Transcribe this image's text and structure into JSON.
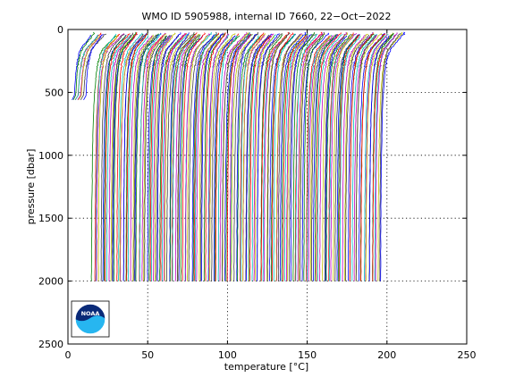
{
  "chart_data": {
    "type": "line",
    "title": "WMO ID 5905988, internal ID 7660, 22−Oct−2022",
    "xlabel": "temperature [°C]",
    "ylabel": "pressure [dbar]",
    "xlim": [
      0,
      250
    ],
    "ylim": [
      0,
      2500
    ],
    "y_reversed": true,
    "x_ticks": [
      0,
      50,
      100,
      150,
      200,
      250
    ],
    "y_ticks": [
      0,
      500,
      1000,
      1500,
      2000,
      2500
    ],
    "x_tick_labels": [
      "0",
      "50",
      "100",
      "150",
      "200",
      "250"
    ],
    "y_tick_labels": [
      "0",
      "500",
      "1000",
      "1500",
      "2000",
      "2500"
    ],
    "grid": true,
    "legend": "none",
    "logo": {
      "icon": "noaa-logo-icon",
      "text": "NOAA"
    },
    "series_colors": [
      "#0000ff",
      "#008000",
      "#ff0000",
      "#00bfbf",
      "#bf00bf",
      "#bfbf00",
      "#404040"
    ],
    "profile_layout": "waterfall: each profile offset in temperature by its index",
    "profiles": {
      "count": 190,
      "offset_step": 1,
      "shallow_count": 8,
      "shallow_max_pressure": 560,
      "shallow_start_x": 3,
      "deep_start_x": 8,
      "max_pressure": 2000,
      "surface_temperature_excess": 14,
      "deep_temperature_minus_offset": 1.5,
      "thermocline_depths": [
        40,
        70,
        100,
        130,
        160,
        200,
        260,
        350,
        500,
        700,
        1000,
        1400,
        2000
      ],
      "thermocline_fractions": [
        0.06,
        0.17,
        0.32,
        0.46,
        0.58,
        0.67,
        0.75,
        0.82,
        0.88,
        0.93,
        0.96,
        0.985,
        1.0
      ]
    }
  }
}
